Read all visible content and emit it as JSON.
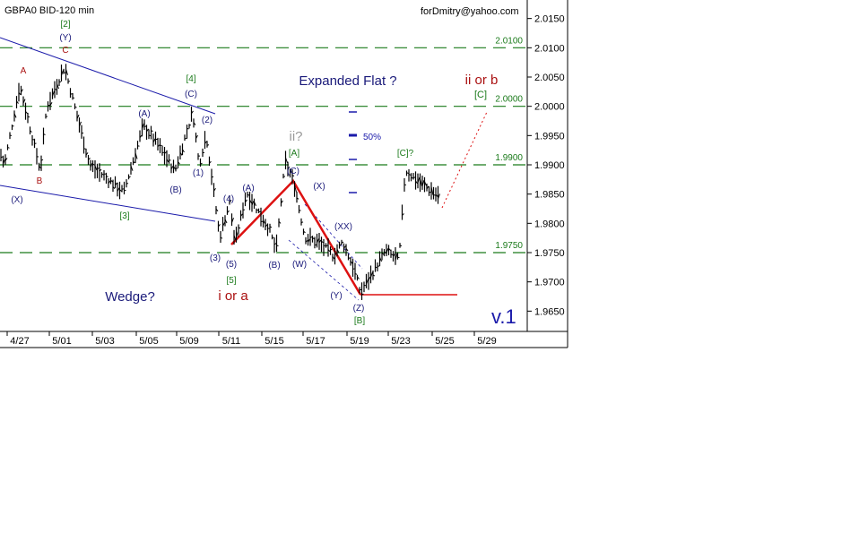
{
  "chart_data": {
    "type": "bar",
    "subtype": "ohlc-price-bars",
    "title": "GBPA0 BID-120 min",
    "credit": "forDmitry@yahoo.com",
    "version_label": "v.1",
    "ylim": [
      1.96,
      2.0175
    ],
    "y_ticks": [
      "2.0150",
      "2.0100",
      "2.0050",
      "2.0000",
      "1.9950",
      "1.9900",
      "1.9850",
      "1.9800",
      "1.9750",
      "1.9700",
      "1.9650"
    ],
    "x_ticks": [
      "4/27",
      "5/01",
      "5/03",
      "5/05",
      "5/09",
      "5/11",
      "5/15",
      "5/17",
      "5/19",
      "5/23",
      "5/25",
      "5/29"
    ],
    "grid": false,
    "price_path_pivots": [
      [
        0,
        1.9921
      ],
      [
        5,
        1.99
      ],
      [
        22,
        2.0036
      ],
      [
        45,
        1.989
      ],
      [
        52,
        1.9998
      ],
      [
        72,
        2.0067
      ],
      [
        100,
        1.99
      ],
      [
        138,
        1.9853
      ],
      [
        160,
        1.9967
      ],
      [
        175,
        1.9937
      ],
      [
        195,
        1.989
      ],
      [
        215,
        1.999
      ],
      [
        222,
        1.99
      ],
      [
        230,
        1.9952
      ],
      [
        245,
        1.9776
      ],
      [
        256,
        1.9837
      ],
      [
        262,
        1.9765
      ],
      [
        275,
        1.9853
      ],
      [
        300,
        1.9791
      ],
      [
        308,
        1.9753
      ],
      [
        318,
        1.9906
      ],
      [
        328,
        1.9868
      ],
      [
        340,
        1.9776
      ],
      [
        355,
        1.9768
      ],
      [
        372,
        1.9745
      ],
      [
        382,
        1.9768
      ],
      [
        395,
        1.9722
      ],
      [
        402,
        1.9681
      ],
      [
        430,
        1.9753
      ],
      [
        445,
        1.9737
      ],
      [
        452,
        1.989
      ],
      [
        470,
        1.9868
      ],
      [
        490,
        1.9845
      ]
    ],
    "horizontal_levels": [
      {
        "value": 2.01,
        "label": "2.0100"
      },
      {
        "value": 2.0,
        "label": "2.0000"
      },
      {
        "value": 1.99,
        "label": "1.9900"
      },
      {
        "value": 1.975,
        "label": "1.9750"
      }
    ],
    "colors": {
      "bars": "#000000",
      "levels": "#1a7a1a",
      "trend": "#1a1aaa",
      "wave": "#dd1111",
      "label_blue": "#1a1a7a",
      "label_red": "#aa1111",
      "label_green": "#1a7a1a",
      "label_gray": "#999999"
    },
    "fib_label": "50%",
    "annotations": [
      {
        "text": "[2]",
        "color": "green"
      },
      {
        "text": "(Y)",
        "color": "blue"
      },
      {
        "text": "C",
        "color": "red"
      },
      {
        "text": "A",
        "color": "red"
      },
      {
        "text": "B",
        "color": "red"
      },
      {
        "text": "(X)",
        "color": "blue"
      },
      {
        "text": "[3]",
        "color": "green"
      },
      {
        "text": "(A)",
        "color": "blue"
      },
      {
        "text": "(B)",
        "color": "blue"
      },
      {
        "text": "[4]",
        "color": "green"
      },
      {
        "text": "(C)",
        "color": "blue"
      },
      {
        "text": "(2)",
        "color": "blue"
      },
      {
        "text": "(1)",
        "color": "blue"
      },
      {
        "text": "(4)",
        "color": "blue"
      },
      {
        "text": "(3)",
        "color": "blue"
      },
      {
        "text": "(5)",
        "color": "blue"
      },
      {
        "text": "[5]",
        "color": "green"
      },
      {
        "text": "(A)",
        "color": "blue"
      },
      {
        "text": "(B)",
        "color": "blue"
      },
      {
        "text": "ii?",
        "color": "gray"
      },
      {
        "text": "[A]",
        "color": "green"
      },
      {
        "text": "(C)",
        "color": "blue"
      },
      {
        "text": "(X)",
        "color": "blue"
      },
      {
        "text": "(W)",
        "color": "blue"
      },
      {
        "text": "(XX)",
        "color": "blue"
      },
      {
        "text": "(Y)",
        "color": "blue"
      },
      {
        "text": "(Z)",
        "color": "blue"
      },
      {
        "text": "[B]",
        "color": "green"
      },
      {
        "text": "[C]?",
        "color": "green"
      },
      {
        "text": "[C]",
        "color": "green"
      },
      {
        "text": "Expanded Flat ?",
        "color": "blue"
      },
      {
        "text": "ii or b",
        "color": "red"
      },
      {
        "text": "Wedge?",
        "color": "blue"
      },
      {
        "text": "i or a",
        "color": "red"
      }
    ]
  }
}
